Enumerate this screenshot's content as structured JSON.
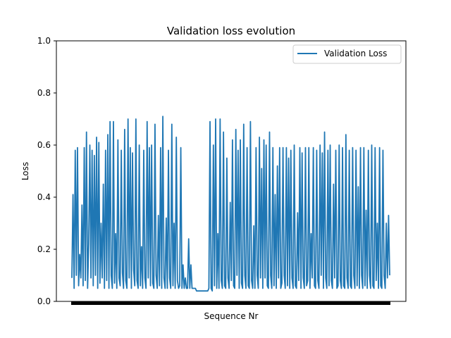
{
  "chart_data": {
    "type": "line",
    "title": "Validation loss evolution",
    "xlabel": "Sequence Nr",
    "ylabel": "Loss",
    "ylim": [
      0.0,
      1.0
    ],
    "yticks": [
      "0.0",
      "0.2",
      "0.4",
      "0.6",
      "0.8",
      "1.0"
    ],
    "xticks_visible": false,
    "legend_position": "top-right",
    "grid": false,
    "series": [
      {
        "name": "Validation Loss",
        "color": "#1f77b4",
        "x_start": 1,
        "values": [
          0.09,
          0.41,
          0.05,
          0.58,
          0.1,
          0.59,
          0.06,
          0.18,
          0.09,
          0.37,
          0.06,
          0.59,
          0.08,
          0.65,
          0.05,
          0.22,
          0.6,
          0.09,
          0.58,
          0.06,
          0.56,
          0.1,
          0.63,
          0.05,
          0.61,
          0.07,
          0.3,
          0.09,
          0.45,
          0.05,
          0.58,
          0.08,
          0.64,
          0.05,
          0.69,
          0.1,
          0.05,
          0.69,
          0.07,
          0.26,
          0.05,
          0.62,
          0.09,
          0.06,
          0.58,
          0.11,
          0.05,
          0.66,
          0.08,
          0.05,
          0.7,
          0.09,
          0.59,
          0.05,
          0.57,
          0.12,
          0.06,
          0.7,
          0.08,
          0.05,
          0.6,
          0.06,
          0.21,
          0.05,
          0.58,
          0.09,
          0.05,
          0.69,
          0.09,
          0.59,
          0.06,
          0.6,
          0.07,
          0.05,
          0.68,
          0.1,
          0.05,
          0.33,
          0.06,
          0.59,
          0.05,
          0.71,
          0.09,
          0.05,
          0.32,
          0.05,
          0.58,
          0.09,
          0.05,
          0.68,
          0.06,
          0.3,
          0.05,
          0.63,
          0.08,
          0.05,
          0.06,
          0.59,
          0.05,
          0.14,
          0.05,
          0.09,
          0.05,
          0.05,
          0.24,
          0.05,
          0.14,
          0.05,
          0.05,
          0.05,
          0.05,
          0.04,
          0.04,
          0.04,
          0.04,
          0.04,
          0.04,
          0.04,
          0.04,
          0.04,
          0.04,
          0.04,
          0.05,
          0.69,
          0.05,
          0.04,
          0.6,
          0.06,
          0.7,
          0.05,
          0.26,
          0.05,
          0.7,
          0.08,
          0.05,
          0.65,
          0.06,
          0.05,
          0.55,
          0.09,
          0.05,
          0.38,
          0.08,
          0.62,
          0.06,
          0.05,
          0.66,
          0.1,
          0.58,
          0.05,
          0.62,
          0.07,
          0.05,
          0.68,
          0.1,
          0.05,
          0.59,
          0.06,
          0.05,
          0.69,
          0.08,
          0.05,
          0.29,
          0.05,
          0.59,
          0.1,
          0.05,
          0.63,
          0.09,
          0.51,
          0.05,
          0.62,
          0.09,
          0.6,
          0.06,
          0.05,
          0.65,
          0.1,
          0.05,
          0.59,
          0.06,
          0.41,
          0.05,
          0.52,
          0.09,
          0.59,
          0.05,
          0.07,
          0.59,
          0.1,
          0.05,
          0.59,
          0.06,
          0.55,
          0.05,
          0.58,
          0.09,
          0.05,
          0.6,
          0.06,
          0.05,
          0.34,
          0.08,
          0.59,
          0.05,
          0.57,
          0.09,
          0.05,
          0.59,
          0.06,
          0.08,
          0.59,
          0.05,
          0.26,
          0.09,
          0.59,
          0.06,
          0.05,
          0.58,
          0.08,
          0.05,
          0.6,
          0.1,
          0.57,
          0.05,
          0.65,
          0.09,
          0.05,
          0.58,
          0.06,
          0.6,
          0.08,
          0.05,
          0.45,
          0.09,
          0.58,
          0.05,
          0.06,
          0.6,
          0.08,
          0.05,
          0.59,
          0.06,
          0.05,
          0.64,
          0.09,
          0.05,
          0.58,
          0.06,
          0.05,
          0.59,
          0.1,
          0.05,
          0.58,
          0.06,
          0.44,
          0.05,
          0.59,
          0.1,
          0.05,
          0.59,
          0.06,
          0.35,
          0.05,
          0.58,
          0.1,
          0.05,
          0.6,
          0.06,
          0.05,
          0.59,
          0.08,
          0.3,
          0.05,
          0.59,
          0.06,
          0.05,
          0.58,
          0.1,
          0.05,
          0.3,
          0.09,
          0.33,
          0.1
        ]
      }
    ]
  }
}
